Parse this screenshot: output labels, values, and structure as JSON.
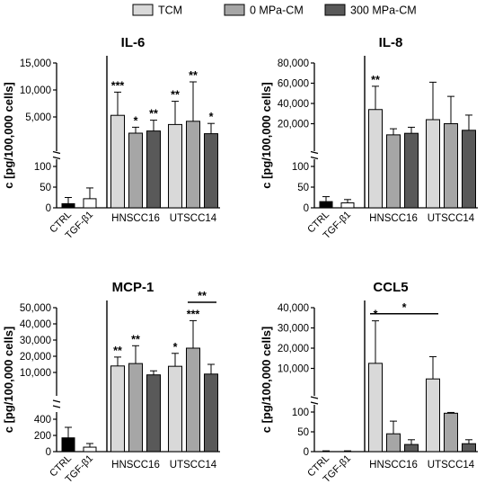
{
  "legend": {
    "items": [
      {
        "label": "TCM",
        "color": "#d9d9d9"
      },
      {
        "label": "0 MPa-CM",
        "color": "#a6a6a6"
      },
      {
        "label": "300 MPa-CM",
        "color": "#595959"
      }
    ]
  },
  "chart_data": [
    {
      "type": "bar",
      "title": "IL-6",
      "ylabel": "c [pg/100,000 cells]",
      "axis_break": true,
      "ylim_lower": [
        0,
        100
      ],
      "ylim_upper": [
        0,
        15000
      ],
      "yticks_lower": [
        "0",
        "50",
        "100"
      ],
      "yticks_upper": [
        "5,000",
        "10,000",
        "15,000"
      ],
      "controls": [
        {
          "label": "CTRL",
          "value": 10,
          "error": 15,
          "color": "#000000"
        },
        {
          "label": "TGF-β1",
          "value": 22,
          "error": 26,
          "color": "#ffffff"
        }
      ],
      "groups": [
        "HNSCC16",
        "UTSCC14"
      ],
      "series": [
        {
          "name": "TCM",
          "values": [
            5300,
            3600
          ],
          "errors": [
            4300,
            4300
          ],
          "significance": [
            "***",
            "**"
          ]
        },
        {
          "name": "0 MPa-CM",
          "values": [
            2000,
            4200
          ],
          "errors": [
            1100,
            7300
          ],
          "significance": [
            "*",
            "**"
          ]
        },
        {
          "name": "300 MPa-CM",
          "values": [
            2400,
            1900
          ],
          "errors": [
            2000,
            1900
          ],
          "significance": [
            "**",
            "*"
          ]
        }
      ],
      "brackets": []
    },
    {
      "type": "bar",
      "title": "IL-8",
      "ylabel": "c [pg/100,000 cells]",
      "axis_break": true,
      "ylim_lower": [
        0,
        100
      ],
      "ylim_upper": [
        0,
        80000
      ],
      "yticks_lower": [
        "0",
        "50",
        "100"
      ],
      "yticks_upper": [
        "20,000",
        "40,000",
        "60,000",
        "80,000"
      ],
      "controls": [
        {
          "label": "CTRL",
          "value": 15,
          "error": 12,
          "color": "#000000"
        },
        {
          "label": "TGF-β1",
          "value": 12,
          "error": 8,
          "color": "#ffffff"
        }
      ],
      "groups": [
        "HNSCC16",
        "UTSCC14"
      ],
      "series": [
        {
          "name": "TCM",
          "values": [
            34000,
            24000
          ],
          "errors": [
            23000,
            37000
          ],
          "significance": [
            "**",
            ""
          ]
        },
        {
          "name": "0 MPa-CM",
          "values": [
            9000,
            20000
          ],
          "errors": [
            6000,
            27000
          ],
          "significance": [
            "",
            ""
          ]
        },
        {
          "name": "300 MPa-CM",
          "values": [
            10500,
            13500
          ],
          "errors": [
            6000,
            15000
          ],
          "significance": [
            "",
            ""
          ]
        }
      ],
      "brackets": []
    },
    {
      "type": "bar",
      "title": "MCP-1",
      "ylabel": "c [pg/100,000 cells]",
      "axis_break": true,
      "ylim_lower": [
        0,
        400
      ],
      "ylim_upper": [
        0,
        50000
      ],
      "yticks_lower": [
        "0",
        "200",
        "400"
      ],
      "yticks_upper": [
        "10,000",
        "20,000",
        "30,000",
        "40,000",
        "50,000"
      ],
      "controls": [
        {
          "label": "CTRL",
          "value": 170,
          "error": 130,
          "color": "#000000"
        },
        {
          "label": "TGF-β1",
          "value": 55,
          "error": 45,
          "color": "#ffffff"
        }
      ],
      "groups": [
        "HNSCC16",
        "UTSCC14"
      ],
      "series": [
        {
          "name": "TCM",
          "values": [
            14000,
            13800
          ],
          "errors": [
            5500,
            8000
          ],
          "significance": [
            "**",
            "*"
          ]
        },
        {
          "name": "0 MPa-CM",
          "values": [
            15500,
            25000
          ],
          "errors": [
            11000,
            17000
          ],
          "significance": [
            "**",
            "***"
          ]
        },
        {
          "name": "300 MPa-CM",
          "values": [
            8500,
            9000
          ],
          "errors": [
            2500,
            6000
          ],
          "significance": [
            "",
            ""
          ]
        }
      ],
      "brackets": [
        {
          "group": 1,
          "from_series": 1,
          "to_series": 2,
          "label": "**"
        }
      ]
    },
    {
      "type": "bar",
      "title": "CCL5",
      "ylabel": "c [pg/100,000 cells]",
      "axis_break": true,
      "ylim_lower": [
        0,
        100
      ],
      "ylim_upper": [
        0,
        40000
      ],
      "yticks_lower": [
        "0",
        "50",
        "100"
      ],
      "yticks_upper": [
        "10,000",
        "20,000",
        "30,000",
        "40,000"
      ],
      "controls": [
        {
          "label": "CTRL",
          "value": 0,
          "error": 2,
          "color": "#000000"
        },
        {
          "label": "TGF-β1",
          "value": 0,
          "error": 2,
          "color": "#ffffff"
        }
      ],
      "groups": [
        "HNSCC16",
        "UTSCC14"
      ],
      "series": [
        {
          "name": "TCM",
          "values": [
            12500,
            4800
          ],
          "errors": [
            21000,
            11000
          ],
          "significance": [
            "*",
            ""
          ]
        },
        {
          "name": "0 MPa-CM",
          "values": [
            45,
            97
          ],
          "errors": [
            32,
            2
          ],
          "significance": [
            "",
            ""
          ]
        },
        {
          "name": "300 MPa-CM",
          "values": [
            18,
            20
          ],
          "errors": [
            12,
            10
          ],
          "significance": [
            "",
            ""
          ]
        }
      ],
      "brackets": [
        {
          "group_from": 0,
          "group_to": 1,
          "from_series": 0,
          "to_series": 0,
          "label": "*",
          "level": 37000
        }
      ]
    }
  ]
}
